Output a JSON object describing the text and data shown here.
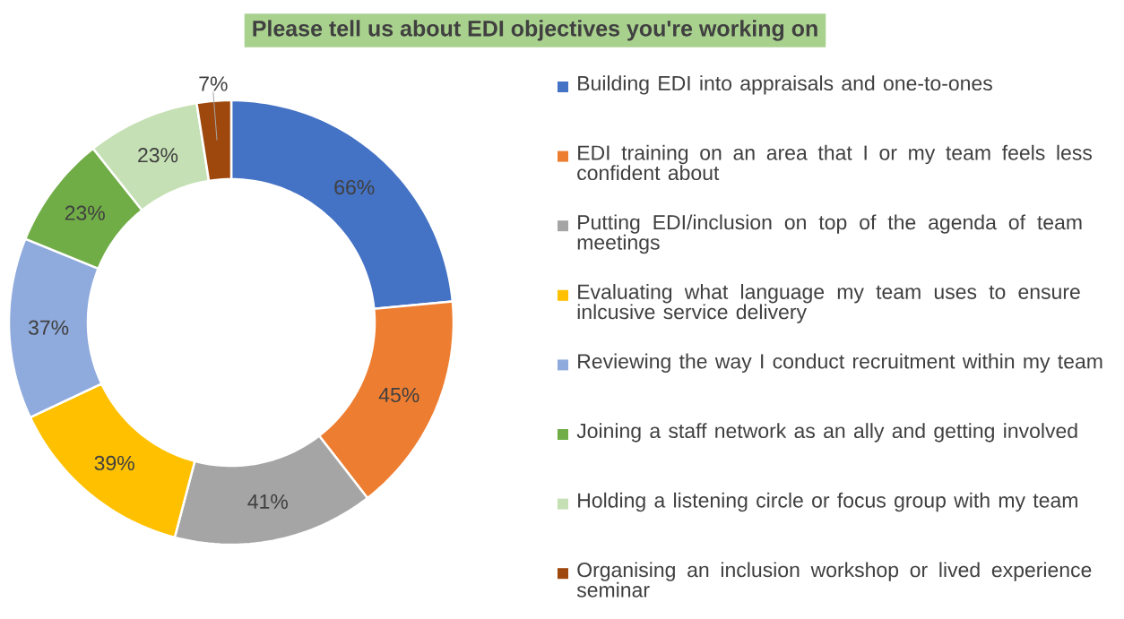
{
  "chart_data": {
    "type": "donut",
    "title": "Please tell us about EDI objectives you're working on",
    "categories": [
      "Building EDI into appraisals and one-to-ones",
      "EDI training on an area that I or my team feels less confident about",
      "Putting EDI/inclusion on top of the agenda of team meetings",
      "Evaluating what language my team uses to ensure inlcusive service delivery",
      "Reviewing the way I conduct recruitment within my team",
      "Joining a staff network as an ally and getting involved",
      "Holding a listening circle or focus group with my team",
      "Organising an inclusion workshop or lived experience seminar"
    ],
    "values": [
      66,
      45,
      41,
      39,
      37,
      23,
      23,
      7
    ],
    "value_labels": [
      "66%",
      "45%",
      "41%",
      "39%",
      "37%",
      "23%",
      "23%",
      "7%"
    ],
    "colors": [
      "#4472c4",
      "#ed7d31",
      "#a5a5a5",
      "#ffc000",
      "#8faadc",
      "#70ad47",
      "#c5e0b4",
      "#9e480e"
    ],
    "legend": "right"
  }
}
